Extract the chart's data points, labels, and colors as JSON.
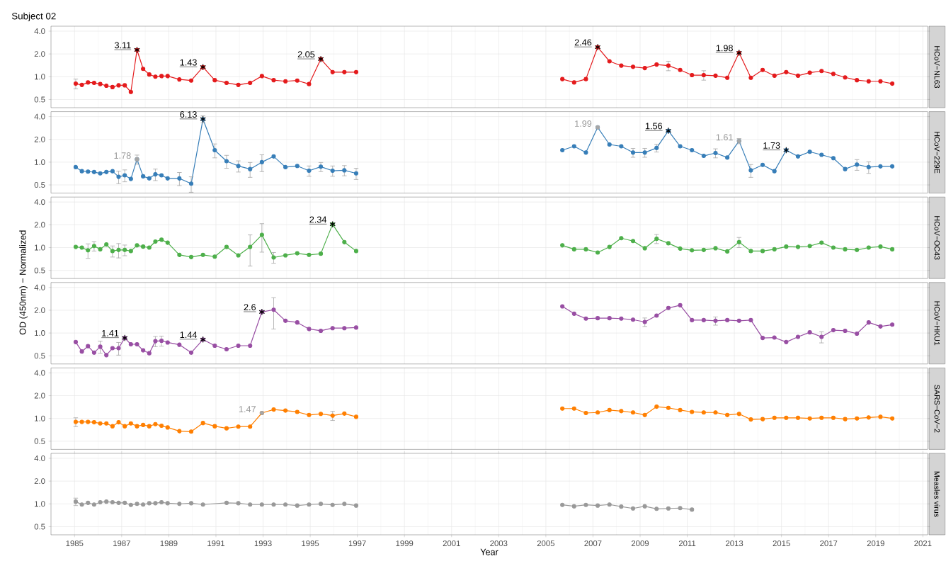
{
  "chart_data": [
    {
      "type": "line",
      "y2label": "HCoV−NL63",
      "annotations": [
        "Subject 02",
        {
          "text": "3.11",
          "x": 1987.65,
          "y": 2.26
        },
        {
          "text": "1.43",
          "x": 1990.45,
          "y": 1.34
        },
        {
          "text": "2.05",
          "x": 1995.45,
          "y": 1.71
        },
        {
          "text": "2.46",
          "x": 2007.2,
          "y": 2.46
        },
        {
          "text": "1.98",
          "x": 2013.2,
          "y": 2.07
        }
      ],
      "x": [
        1985.05,
        1985.31,
        1985.57,
        1985.83,
        1986.09,
        1986.35,
        1986.61,
        1986.87,
        1987.13,
        1987.39,
        1987.65,
        1987.91,
        1988.17,
        1988.43,
        1988.69,
        1988.95,
        1989.45,
        1989.95,
        1990.45,
        1990.95,
        1991.45,
        1991.95,
        1992.45,
        1992.95,
        1993.45,
        1993.95,
        1994.45,
        1994.95,
        1995.45,
        1995.95,
        1996.45,
        1996.95,
        2001,
        2005.7,
        2006.2,
        2006.7,
        2007.2,
        2007.7,
        2008.2,
        2008.7,
        2009.2,
        2009.7,
        2010.2,
        2010.7,
        2011.2,
        2011.7,
        2012.2,
        2012.7,
        2013.2,
        2013.7,
        2014.2,
        2014.7,
        2015.2,
        2015.7,
        2016.2,
        2016.7,
        2017.2,
        2017.7,
        2018.2,
        2018.7,
        2019.2,
        2019.7
      ],
      "xlim": [
        1984.0,
        2021.2
      ],
      "xticks": [
        1985,
        1987,
        1989,
        1991,
        1993,
        1995,
        1997,
        1999,
        2001,
        2003,
        2005,
        2007,
        2009,
        2011,
        2013,
        2015,
        2017,
        2019,
        2021
      ],
      "ylim": [
        0.39,
        4.65
      ],
      "yticks": [
        {
          "value": 0.5,
          "label": "0.5"
        },
        {
          "value": 1,
          "label": "1.0"
        },
        {
          "value": 2,
          "label": "2.0"
        },
        {
          "value": 4,
          "label": "4.0"
        }
      ],
      "log": "y",
      "grid": true,
      "tick_labels": "y",
      "marker": "circle",
      "line_style": "solid",
      "series": [
        {
          "color": "#e41a1c",
          "values": [
            0.81,
            0.78,
            0.84,
            0.83,
            0.8,
            0.76,
            0.73,
            0.77,
            0.77,
            0.63,
            2.26,
            1.27,
            1.07,
            1.0,
            1.02,
            1.02,
            0.92,
            0.89,
            1.34,
            0.9,
            0.83,
            0.78,
            0.83,
            1.02,
            0.9,
            0.87,
            0.89,
            0.8,
            1.71,
            1.15,
            1.15,
            1.15,
            null,
            0.93,
            0.84,
            0.93,
            2.46,
            1.6,
            1.4,
            1.35,
            1.3,
            1.45,
            1.4,
            1.23,
            1.05,
            1.05,
            1.03,
            0.97,
            2.07,
            0.97,
            1.23,
            1.03,
            1.15,
            1.03,
            1.13,
            1.19,
            1.09,
            0.98,
            0.9,
            0.87,
            0.87,
            0.81
          ],
          "errors": [
            0.12,
            null,
            null,
            null,
            null,
            null,
            null,
            null,
            null,
            null,
            null,
            null,
            null,
            null,
            null,
            null,
            null,
            null,
            null,
            null,
            null,
            null,
            null,
            null,
            null,
            null,
            null,
            null,
            null,
            null,
            null,
            null,
            null,
            null,
            null,
            null,
            null,
            null,
            null,
            null,
            null,
            null,
            0.2,
            null,
            null,
            0.15,
            null,
            null,
            null,
            null,
            null,
            null,
            null,
            null,
            null,
            null,
            null,
            null,
            null,
            null,
            null,
            null
          ]
        },
        {
          "type": "scatter",
          "marker": "cross",
          "color": "#000000",
          "x": [
            1987.65,
            1990.45,
            1995.45,
            2007.2,
            2013.2
          ],
          "values": [
            2.26,
            1.34,
            1.71,
            2.46,
            2.07
          ]
        }
      ]
    },
    {
      "type": "line",
      "y2label": "HCoV−229E",
      "annotations": [
        {
          "text": "1.78",
          "x": 1987.65,
          "y": 1.09
        },
        {
          "text": "6.13",
          "x": 1990.45,
          "y": 3.7
        },
        {
          "text": "1.99",
          "x": 2007.2,
          "y": 2.88
        },
        {
          "text": "1.56",
          "x": 2010.2,
          "y": 2.6
        },
        {
          "text": "1.61",
          "x": 2013.2,
          "y": 1.9
        },
        {
          "text": "1.73",
          "x": 2015.2,
          "y": 1.44
        }
      ],
      "x": [
        1985.05,
        1985.31,
        1985.57,
        1985.83,
        1986.09,
        1986.35,
        1986.61,
        1986.87,
        1987.13,
        1987.39,
        1987.65,
        1987.91,
        1988.17,
        1988.43,
        1988.69,
        1988.95,
        1989.45,
        1989.95,
        1990.45,
        1990.95,
        1991.45,
        1991.95,
        1992.45,
        1992.95,
        1993.45,
        1993.95,
        1994.45,
        1994.95,
        1995.45,
        1995.95,
        1996.45,
        1996.95,
        2001,
        2005.7,
        2006.2,
        2006.7,
        2007.2,
        2007.7,
        2008.2,
        2008.7,
        2009.2,
        2009.7,
        2010.2,
        2010.7,
        2011.2,
        2011.7,
        2012.2,
        2012.7,
        2013.2,
        2013.7,
        2014.2,
        2014.7,
        2015.2,
        2015.7,
        2016.2,
        2016.7,
        2017.2,
        2017.7,
        2018.2,
        2018.7,
        2019.2,
        2019.7
      ],
      "xlim": [
        1984.0,
        2021.2
      ],
      "xticks": [
        1985,
        1987,
        1989,
        1991,
        1993,
        1995,
        1997,
        1999,
        2001,
        2003,
        2005,
        2007,
        2009,
        2011,
        2013,
        2015,
        2017,
        2019,
        2021
      ],
      "ylim": [
        0.39,
        4.65
      ],
      "yticks": [
        {
          "value": 0.5,
          "label": "0.5"
        },
        {
          "value": 1,
          "label": "1.0"
        },
        {
          "value": 2,
          "label": "2.0"
        },
        {
          "value": 4,
          "label": "4.0"
        }
      ],
      "log": "y",
      "grid": true,
      "tick_labels": "y",
      "marker": "circle",
      "line_style": "solid",
      "series": [
        {
          "color": "#377eb8",
          "values": [
            0.86,
            0.76,
            0.75,
            0.74,
            0.71,
            0.74,
            0.76,
            0.64,
            0.67,
            0.6,
            1.09,
            0.65,
            0.61,
            0.69,
            0.67,
            0.61,
            0.61,
            0.52,
            3.7,
            1.44,
            1.03,
            0.89,
            0.81,
            1.0,
            1.19,
            0.86,
            0.89,
            0.77,
            0.87,
            0.77,
            0.78,
            0.71,
            null,
            1.44,
            1.62,
            1.34,
            2.88,
            1.71,
            1.62,
            1.34,
            1.34,
            1.54,
            2.6,
            1.62,
            1.44,
            1.21,
            1.32,
            1.15,
            1.9,
            0.78,
            0.92,
            0.76,
            1.44,
            1.19,
            1.37,
            1.25,
            1.13,
            0.81,
            0.93,
            0.86,
            0.88,
            0.88
          ],
          "errors": [
            null,
            null,
            null,
            null,
            null,
            null,
            null,
            0.12,
            0.12,
            null,
            0.15,
            null,
            null,
            0.12,
            null,
            null,
            0.12,
            0.12,
            0.4,
            0.3,
            0.2,
            0.15,
            0.18,
            0.25,
            null,
            null,
            null,
            0.12,
            0.12,
            0.12,
            0.12,
            0.12,
            null,
            null,
            null,
            null,
            null,
            null,
            null,
            0.18,
            0.18,
            0.18,
            null,
            null,
            null,
            null,
            0.18,
            null,
            0.15,
            0.15,
            null,
            null,
            null,
            null,
            null,
            null,
            null,
            null,
            0.15,
            0.15,
            null,
            null
          ]
        },
        {
          "type": "scatter",
          "marker": "circle",
          "color": "#a6a6a6",
          "x": [
            1987.65,
            2007.2,
            2013.2
          ],
          "values": [
            1.09,
            2.88,
            1.9
          ]
        },
        {
          "type": "scatter",
          "marker": "cross",
          "color": "#000000",
          "x": [
            1990.45,
            2010.2,
            2015.2
          ],
          "values": [
            3.7,
            2.6,
            1.44
          ]
        }
      ]
    },
    {
      "type": "line",
      "y2label": "HCoV−OC43",
      "annotations": [
        {
          "text": "2.34",
          "x": 1995.95,
          "y": 2.03
        }
      ],
      "x": [
        1985.05,
        1985.31,
        1985.57,
        1985.83,
        1986.09,
        1986.35,
        1986.61,
        1986.87,
        1987.13,
        1987.39,
        1987.65,
        1987.91,
        1988.17,
        1988.43,
        1988.69,
        1988.95,
        1989.45,
        1989.95,
        1990.45,
        1990.95,
        1991.45,
        1991.95,
        1992.45,
        1992.95,
        1993.45,
        1993.95,
        1994.45,
        1994.95,
        1995.45,
        1995.95,
        1996.45,
        1996.95,
        2001,
        2005.7,
        2006.2,
        2006.7,
        2007.2,
        2007.7,
        2008.2,
        2008.7,
        2009.2,
        2009.7,
        2010.2,
        2010.7,
        2011.2,
        2011.7,
        2012.2,
        2012.7,
        2013.2,
        2013.7,
        2014.2,
        2014.7,
        2015.2,
        2015.7,
        2016.2,
        2016.7,
        2017.2,
        2017.7,
        2018.2,
        2018.7,
        2019.2,
        2019.7
      ],
      "xlim": [
        1984.0,
        2021.2
      ],
      "xticks": [
        1985,
        1987,
        1989,
        1991,
        1993,
        1995,
        1997,
        1999,
        2001,
        2003,
        2005,
        2007,
        2009,
        2011,
        2013,
        2015,
        2017,
        2019,
        2021
      ],
      "ylim": [
        0.39,
        4.65
      ],
      "yticks": [
        {
          "value": 0.5,
          "label": "0.5"
        },
        {
          "value": 1,
          "label": "1.0"
        },
        {
          "value": 2,
          "label": "2.0"
        },
        {
          "value": 4,
          "label": "4.0"
        }
      ],
      "log": "y",
      "grid": true,
      "tick_labels": "y",
      "marker": "circle",
      "line_style": "solid",
      "series": [
        {
          "color": "#4daf4a",
          "values": [
            1.02,
            1.0,
            0.92,
            1.05,
            0.95,
            1.1,
            0.9,
            0.93,
            0.93,
            0.9,
            1.07,
            1.03,
            1.0,
            1.2,
            1.27,
            1.16,
            0.8,
            0.75,
            0.8,
            0.76,
            1.02,
            0.79,
            1.02,
            1.47,
            0.74,
            0.79,
            0.84,
            0.8,
            0.83,
            2.03,
            1.18,
            0.9,
            null,
            1.07,
            0.95,
            0.95,
            0.86,
            1.02,
            1.33,
            1.22,
            0.98,
            1.31,
            1.14,
            0.97,
            0.92,
            0.93,
            0.98,
            0.89,
            1.18,
            0.9,
            0.9,
            0.95,
            1.03,
            1.02,
            1.05,
            1.16,
            1.0,
            0.95,
            0.93,
            1.0,
            1.03,
            0.95
          ],
          "errors": [
            null,
            null,
            0.2,
            0.15,
            null,
            null,
            0.15,
            0.2,
            0.15,
            null,
            null,
            null,
            null,
            null,
            null,
            null,
            null,
            null,
            null,
            null,
            null,
            null,
            0.45,
            0.6,
            0.12,
            null,
            null,
            null,
            null,
            null,
            null,
            null,
            null,
            null,
            null,
            null,
            null,
            null,
            null,
            null,
            null,
            0.18,
            null,
            null,
            null,
            null,
            null,
            null,
            0.18,
            null,
            null,
            null,
            null,
            null,
            null,
            null,
            null,
            null,
            null,
            null,
            null,
            null
          ]
        },
        {
          "type": "scatter",
          "marker": "cross",
          "color": "#000000",
          "x": [
            1995.95
          ],
          "values": [
            2.03
          ]
        }
      ]
    },
    {
      "type": "line",
      "y2label": "HCoV−HKU1",
      "ylabel": "OD (450nm) − Normalized",
      "annotations": [
        {
          "text": "1.41",
          "x": 1987.13,
          "y": 0.86
        },
        {
          "text": "1.44",
          "x": 1990.45,
          "y": 0.82
        },
        {
          "text": "2.6",
          "x": 1992.95,
          "y": 1.9
        }
      ],
      "x": [
        1985.05,
        1985.31,
        1985.57,
        1985.83,
        1986.09,
        1986.35,
        1986.61,
        1986.87,
        1987.13,
        1987.39,
        1987.65,
        1987.91,
        1988.17,
        1988.43,
        1988.69,
        1988.95,
        1989.45,
        1989.95,
        1990.45,
        1990.95,
        1991.45,
        1991.95,
        1992.45,
        1992.95,
        1993.45,
        1993.95,
        1994.45,
        1994.95,
        1995.45,
        1995.95,
        1996.45,
        1996.95,
        2001,
        2005.7,
        2006.2,
        2006.7,
        2007.2,
        2007.7,
        2008.2,
        2008.7,
        2009.2,
        2009.7,
        2010.2,
        2010.7,
        2011.2,
        2011.7,
        2012.2,
        2012.7,
        2013.2,
        2013.7,
        2014.2,
        2014.7,
        2015.2,
        2015.7,
        2016.2,
        2016.7,
        2017.2,
        2017.7,
        2018.2,
        2018.7,
        2019.2,
        2019.7
      ],
      "xlim": [
        1984.0,
        2021.2
      ],
      "xticks": [
        1985,
        1987,
        1989,
        1991,
        1993,
        1995,
        1997,
        1999,
        2001,
        2003,
        2005,
        2007,
        2009,
        2011,
        2013,
        2015,
        2017,
        2019,
        2021
      ],
      "ylim": [
        0.39,
        4.65
      ],
      "yticks": [
        {
          "value": 0.5,
          "label": "0.5"
        },
        {
          "value": 1,
          "label": "1.0"
        },
        {
          "value": 2,
          "label": "2.0"
        },
        {
          "value": 4,
          "label": "4.0"
        }
      ],
      "log": "y",
      "grid": true,
      "tick_labels": "y",
      "marker": "circle",
      "line_style": "solid",
      "series": [
        {
          "color": "#984ea3",
          "values": [
            0.76,
            0.57,
            0.67,
            0.55,
            0.66,
            0.51,
            0.63,
            0.63,
            0.86,
            0.71,
            0.71,
            0.59,
            0.54,
            0.78,
            0.79,
            0.75,
            0.7,
            0.55,
            0.82,
            0.68,
            0.61,
            0.68,
            0.68,
            1.9,
            2.03,
            1.45,
            1.38,
            1.13,
            1.07,
            1.16,
            1.16,
            1.18,
            null,
            2.25,
            1.8,
            1.55,
            1.57,
            1.57,
            1.55,
            1.5,
            1.4,
            1.7,
            2.14,
            2.33,
            1.48,
            1.48,
            1.45,
            1.48,
            1.45,
            1.48,
            0.86,
            0.87,
            0.76,
            0.89,
            1.02,
            0.89,
            1.09,
            1.07,
            0.98,
            1.38,
            1.22,
            1.29
          ],
          "errors": [
            null,
            null,
            null,
            null,
            0.12,
            null,
            null,
            0.12,
            null,
            null,
            null,
            null,
            null,
            0.12,
            0.12,
            null,
            null,
            null,
            null,
            null,
            null,
            null,
            null,
            null,
            0.9,
            null,
            null,
            null,
            null,
            null,
            null,
            null,
            null,
            null,
            null,
            null,
            null,
            null,
            null,
            null,
            0.18,
            null,
            null,
            null,
            null,
            null,
            0.18,
            null,
            null,
            null,
            null,
            null,
            null,
            null,
            null,
            0.15,
            null,
            null,
            null,
            null,
            null,
            null
          ]
        },
        {
          "type": "scatter",
          "marker": "cross",
          "color": "#000000",
          "x": [
            1987.13,
            1990.45,
            1992.95
          ],
          "values": [
            0.86,
            0.82,
            1.9
          ]
        }
      ]
    },
    {
      "type": "line",
      "y2label": "SARS−CoV−2",
      "annotations": [
        {
          "text": "1.47",
          "x": 1992.95,
          "y": 1.18
        }
      ],
      "x": [
        1985.05,
        1985.31,
        1985.57,
        1985.83,
        1986.09,
        1986.35,
        1986.61,
        1986.87,
        1987.13,
        1987.39,
        1987.65,
        1987.91,
        1988.17,
        1988.43,
        1988.69,
        1988.95,
        1989.45,
        1989.95,
        1990.45,
        1990.95,
        1991.45,
        1991.95,
        1992.45,
        1992.95,
        1993.45,
        1993.95,
        1994.45,
        1994.95,
        1995.45,
        1995.95,
        1996.45,
        1996.95,
        2001,
        2005.7,
        2006.2,
        2006.7,
        2007.2,
        2007.7,
        2008.2,
        2008.7,
        2009.2,
        2009.7,
        2010.2,
        2010.7,
        2011.2,
        2011.7,
        2012.2,
        2012.7,
        2013.2,
        2013.7,
        2014.2,
        2014.7,
        2015.2,
        2015.7,
        2016.2,
        2016.7,
        2017.2,
        2017.7,
        2018.2,
        2018.7,
        2019.2,
        2019.7
      ],
      "xlim": [
        1984.0,
        2021.2
      ],
      "xticks": [
        1985,
        1987,
        1989,
        1991,
        1993,
        1995,
        1997,
        1999,
        2001,
        2003,
        2005,
        2007,
        2009,
        2011,
        2013,
        2015,
        2017,
        2019,
        2021
      ],
      "ylim": [
        0.39,
        4.65
      ],
      "yticks": [
        {
          "value": 0.5,
          "label": "0.5"
        },
        {
          "value": 1,
          "label": "1.0"
        },
        {
          "value": 2,
          "label": "2.0"
        },
        {
          "value": 4,
          "label": "4.0"
        }
      ],
      "log": "y",
      "grid": true,
      "tick_labels": "y",
      "marker": "circle",
      "line_style": "solid",
      "series": [
        {
          "color": "#ff7f00",
          "values": [
            0.9,
            0.9,
            0.9,
            0.89,
            0.86,
            0.86,
            0.79,
            0.89,
            0.79,
            0.86,
            0.79,
            0.82,
            0.79,
            0.84,
            0.8,
            0.76,
            0.68,
            0.67,
            0.87,
            0.79,
            0.74,
            0.78,
            0.78,
            1.18,
            1.31,
            1.27,
            1.22,
            1.11,
            1.15,
            1.09,
            1.16,
            1.05,
            null,
            1.35,
            1.35,
            1.18,
            1.2,
            1.29,
            1.25,
            1.2,
            1.11,
            1.43,
            1.38,
            1.29,
            1.22,
            1.2,
            1.2,
            1.11,
            1.15,
            0.97,
            0.98,
            1.02,
            1.02,
            1.02,
            1.0,
            1.02,
            1.02,
            0.98,
            1.0,
            1.03,
            1.05,
            1.0
          ],
          "errors": [
            0.12,
            null,
            null,
            null,
            null,
            null,
            null,
            null,
            null,
            null,
            null,
            null,
            null,
            null,
            null,
            null,
            null,
            null,
            null,
            null,
            null,
            null,
            null,
            null,
            null,
            null,
            null,
            null,
            null,
            0.15,
            null,
            null,
            null,
            null,
            null,
            null,
            null,
            null,
            null,
            null,
            null,
            null,
            null,
            null,
            null,
            null,
            null,
            null,
            null,
            null,
            null,
            null,
            null,
            null,
            null,
            null,
            null,
            null,
            null,
            null,
            null,
            null
          ]
        },
        {
          "type": "scatter",
          "marker": "circle",
          "color": "#a6a6a6",
          "x": [
            1992.95
          ],
          "values": [
            1.18
          ]
        }
      ]
    },
    {
      "type": "line",
      "y2label": "Measles virus",
      "xlabel": "Year",
      "x": [
        1985.05,
        1985.31,
        1985.57,
        1985.83,
        1986.09,
        1986.35,
        1986.61,
        1986.87,
        1987.13,
        1987.39,
        1987.65,
        1987.91,
        1988.17,
        1988.43,
        1988.69,
        1988.95,
        1989.45,
        1989.95,
        1990.45,
        1991.45,
        1991.95,
        1992.45,
        1992.95,
        1993.45,
        1993.95,
        1994.45,
        1994.95,
        1995.45,
        1995.95,
        1996.45,
        1996.95,
        2001,
        2005.7,
        2006.2,
        2006.7,
        2007.2,
        2007.7,
        2008.2,
        2008.7,
        2009.2,
        2009.7,
        2010.2,
        2010.7,
        2011.2
      ],
      "xlim": [
        1984.0,
        2021.2
      ],
      "xticks": [
        1985,
        1987,
        1989,
        1991,
        1993,
        1995,
        1997,
        1999,
        2001,
        2003,
        2005,
        2007,
        2009,
        2011,
        2013,
        2015,
        2017,
        2019,
        2021
      ],
      "ylim": [
        0.39,
        4.65
      ],
      "yticks": [
        {
          "value": 0.5,
          "label": "0.5"
        },
        {
          "value": 1,
          "label": "1.0"
        },
        {
          "value": 2,
          "label": "2.0"
        },
        {
          "value": 4,
          "label": "4.0"
        }
      ],
      "log": "y",
      "grid": true,
      "marker": "circle",
      "line_style": "solid",
      "series": [
        {
          "color": "#999999",
          "values": [
            1.07,
            0.98,
            1.03,
            0.98,
            1.05,
            1.07,
            1.05,
            1.03,
            1.03,
            0.97,
            1.0,
            0.98,
            1.02,
            1.02,
            1.05,
            1.02,
            1.0,
            1.02,
            0.98,
            1.03,
            1.02,
            0.98,
            0.98,
            0.98,
            0.98,
            0.95,
            0.98,
            1.0,
            0.97,
            1.0,
            0.95,
            null,
            0.97,
            0.93,
            0.97,
            0.95,
            0.98,
            0.92,
            0.87,
            0.93,
            0.86,
            0.87,
            0.88,
            0.84
          ],
          "errors": [
            0.12,
            null,
            null,
            null,
            null,
            null,
            null,
            null,
            null,
            null,
            null,
            null,
            null,
            null,
            null,
            null,
            null,
            null,
            null,
            null,
            null,
            null,
            null,
            null,
            null,
            null,
            null,
            null,
            null,
            null,
            null,
            null,
            null,
            null,
            null,
            null,
            null,
            null,
            null,
            null,
            null,
            null,
            null,
            null
          ]
        }
      ]
    }
  ]
}
